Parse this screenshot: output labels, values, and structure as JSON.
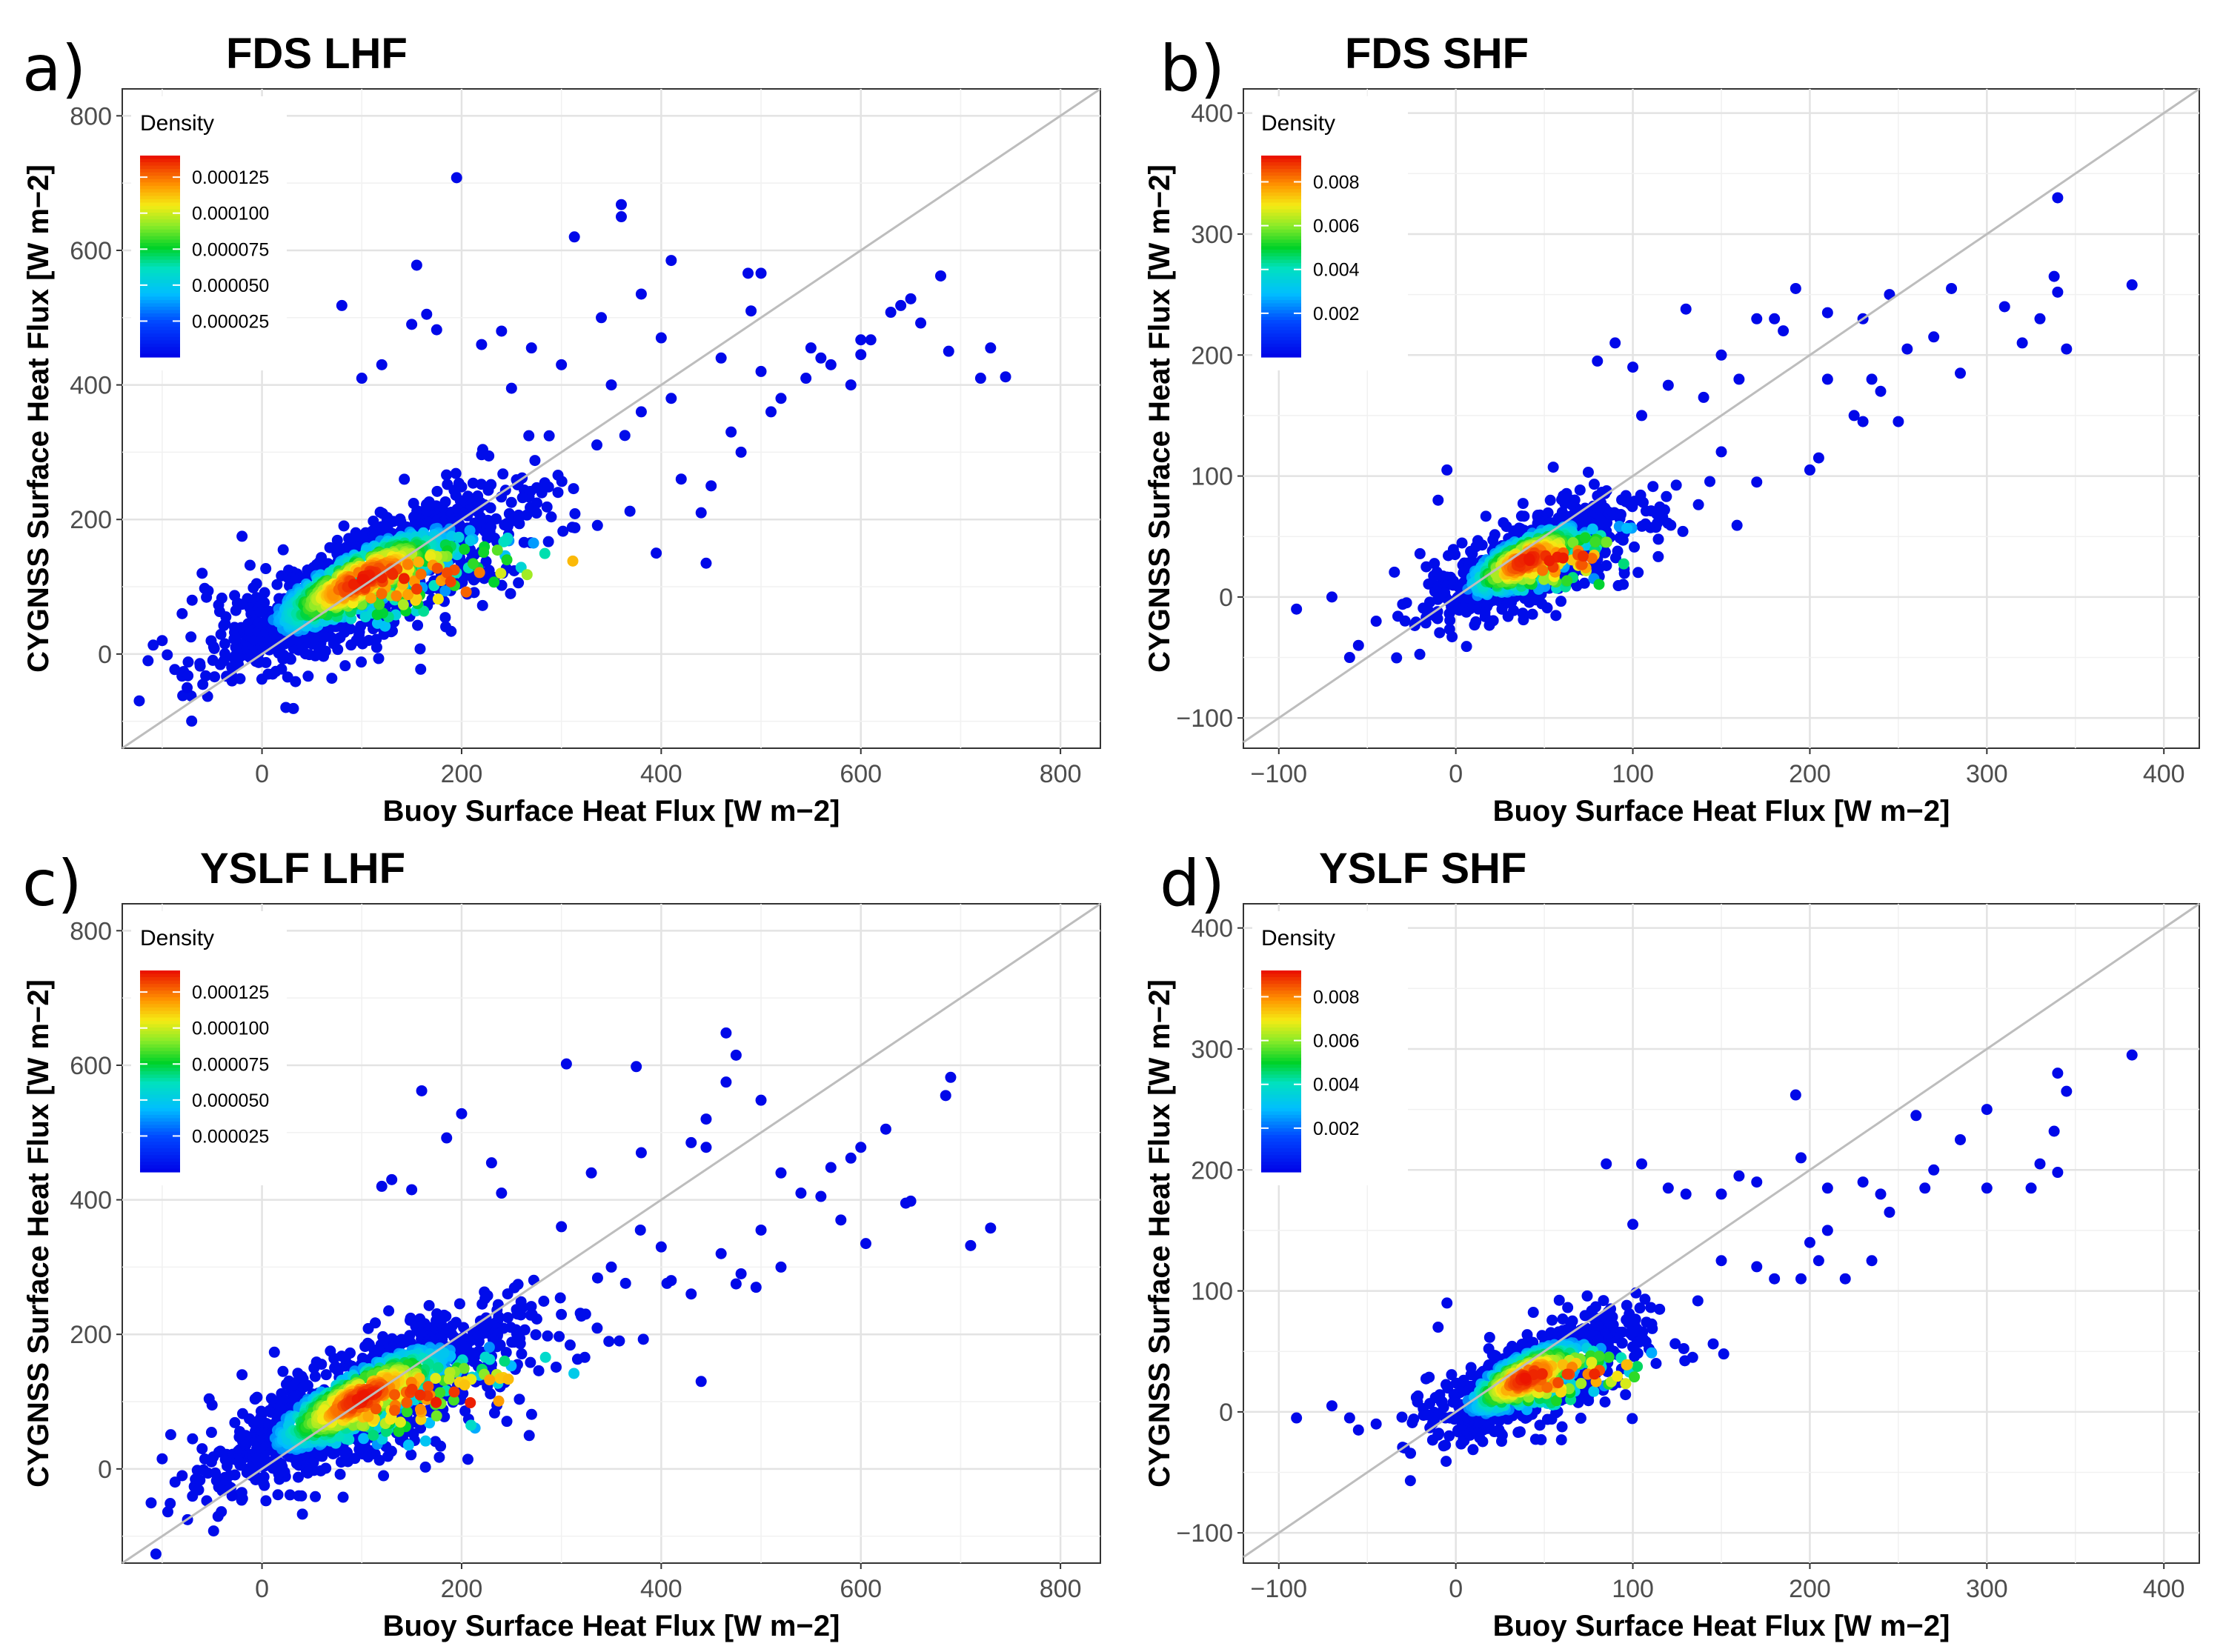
{
  "figure": {
    "panels": [
      {
        "letter": "a)",
        "title": "FDS LHF",
        "xlabel": "Buoy Surface Heat Flux [W m−2]",
        "ylabel": "CYGNSS Surface Heat Flux [W m−2]",
        "legend_title": "Density",
        "legend_labels": [
          "0.000125",
          "0.000100",
          "0.000075",
          "0.000050",
          "0.000025"
        ]
      },
      {
        "letter": "b)",
        "title": "FDS SHF",
        "xlabel": "Buoy Surface Heat Flux [W m−2]",
        "ylabel": "CYGNSS Surface Heat Flux [W m−2]",
        "legend_title": "Density",
        "legend_labels": [
          "0.008",
          "0.006",
          "0.004",
          "0.002"
        ]
      },
      {
        "letter": "c)",
        "title": "YSLF LHF",
        "xlabel": "Buoy Surface Heat Flux [W m−2]",
        "ylabel": "CYGNSS Surface Heat Flux [W m−2]",
        "legend_title": "Density",
        "legend_labels": [
          "0.000125",
          "0.000100",
          "0.000075",
          "0.000050",
          "0.000025"
        ]
      },
      {
        "letter": "d)",
        "title": "YSLF SHF",
        "xlabel": "Buoy Surface Heat Flux [W m−2]",
        "ylabel": "CYGNSS Surface Heat Flux [W m−2]",
        "legend_title": "Density",
        "legend_labels": [
          "0.008",
          "0.006",
          "0.004",
          "0.002"
        ]
      }
    ]
  },
  "chart_data": [
    {
      "type": "scatter",
      "title": "FDS LHF",
      "xlabel": "Buoy Surface Heat Flux [W m−2]",
      "ylabel": "CYGNSS Surface Heat Flux [W m−2]",
      "xlim": [
        -140,
        840
      ],
      "ylim": [
        -140,
        840
      ],
      "xticks": [
        0,
        200,
        400,
        600,
        800
      ],
      "yticks": [
        0,
        200,
        400,
        600,
        800
      ],
      "identity_line": true,
      "color_by": "density",
      "legend": {
        "title": "Density",
        "ticks": [
          0.000125,
          0.0001,
          7.5e-05,
          5e-05,
          2.5e-05
        ],
        "max": 0.00014
      },
      "cloud": {
        "center": [
          100,
          110
        ],
        "spread_along": 95,
        "spread_across": 30,
        "n": 1400
      },
      "outliers": [
        [
          195,
          708
        ],
        [
          360,
          668
        ],
        [
          360,
          650
        ],
        [
          313,
          620
        ],
        [
          155,
          578
        ],
        [
          410,
          585
        ],
        [
          487,
          566
        ],
        [
          500,
          566
        ],
        [
          680,
          562
        ],
        [
          650,
          528
        ],
        [
          380,
          535
        ],
        [
          80,
          518
        ],
        [
          630,
          508
        ],
        [
          640,
          518
        ],
        [
          165,
          505
        ],
        [
          660,
          492
        ],
        [
          150,
          490
        ],
        [
          175,
          482
        ],
        [
          600,
          467
        ],
        [
          610,
          467
        ],
        [
          688,
          450
        ],
        [
          730,
          455
        ],
        [
          720,
          410
        ],
        [
          745,
          412
        ],
        [
          550,
          455
        ],
        [
          560,
          440
        ],
        [
          570,
          430
        ],
        [
          590,
          400
        ],
        [
          600,
          445
        ],
        [
          545,
          410
        ],
        [
          350,
          400
        ],
        [
          460,
          440
        ],
        [
          500,
          420
        ],
        [
          520,
          380
        ],
        [
          510,
          360
        ],
        [
          470,
          330
        ],
        [
          480,
          300
        ],
        [
          420,
          260
        ],
        [
          450,
          250
        ],
        [
          440,
          210
        ],
        [
          395,
          150
        ],
        [
          445,
          135
        ],
        [
          250,
          395
        ],
        [
          300,
          430
        ],
        [
          270,
          455
        ],
        [
          120,
          430
        ],
        [
          100,
          410
        ],
        [
          490,
          510
        ],
        [
          400,
          470
        ],
        [
          340,
          500
        ],
        [
          -20,
          175
        ],
        [
          -60,
          120
        ],
        [
          -70,
          80
        ],
        [
          -100,
          20
        ],
        [
          -75,
          -50
        ],
        [
          -80,
          60
        ],
        [
          -30,
          -40
        ],
        [
          220,
          460
        ],
        [
          240,
          480
        ],
        [
          380,
          360
        ],
        [
          410,
          380
        ]
      ]
    },
    {
      "type": "scatter",
      "title": "FDS SHF",
      "xlabel": "Buoy Surface Heat Flux [W m−2]",
      "ylabel": "CYGNSS Surface Heat Flux [W m−2]",
      "xlim": [
        -120,
        420
      ],
      "ylim": [
        -125,
        420
      ],
      "xticks": [
        -100,
        0,
        100,
        200,
        300,
        400
      ],
      "yticks": [
        -100,
        0,
        100,
        200,
        300,
        400
      ],
      "identity_line": true,
      "color_by": "density",
      "legend": {
        "title": "Density",
        "ticks": [
          0.008,
          0.006,
          0.004,
          0.002
        ],
        "max": 0.0092
      },
      "cloud": {
        "center": [
          40,
          30
        ],
        "spread_along": 35,
        "spread_across": 14,
        "n": 900
      },
      "outliers": [
        [
          340,
          330
        ],
        [
          382,
          258
        ],
        [
          338,
          265
        ],
        [
          340,
          252
        ],
        [
          192,
          255
        ],
        [
          245,
          250
        ],
        [
          130,
          238
        ],
        [
          170,
          230
        ],
        [
          180,
          230
        ],
        [
          210,
          235
        ],
        [
          230,
          230
        ],
        [
          270,
          215
        ],
        [
          280,
          255
        ],
        [
          310,
          240
        ],
        [
          330,
          230
        ],
        [
          320,
          210
        ],
        [
          255,
          205
        ],
        [
          285,
          185
        ],
        [
          345,
          205
        ],
        [
          185,
          220
        ],
        [
          210,
          180
        ],
        [
          235,
          180
        ],
        [
          240,
          170
        ],
        [
          225,
          150
        ],
        [
          230,
          145
        ],
        [
          250,
          145
        ],
        [
          205,
          115
        ],
        [
          200,
          105
        ],
        [
          150,
          200
        ],
        [
          160,
          180
        ],
        [
          90,
          210
        ],
        [
          80,
          195
        ],
        [
          100,
          190
        ],
        [
          -90,
          -10
        ],
        [
          -70,
          0
        ],
        [
          -55,
          -40
        ],
        [
          -60,
          -50
        ],
        [
          -45,
          -20
        ],
        [
          -5,
          105
        ],
        [
          -10,
          80
        ],
        [
          120,
          175
        ],
        [
          140,
          165
        ],
        [
          105,
          150
        ],
        [
          150,
          120
        ],
        [
          170,
          95
        ]
      ]
    },
    {
      "type": "scatter",
      "title": "YSLF LHF",
      "xlabel": "Buoy Surface Heat Flux [W m−2]",
      "ylabel": "CYGNSS Surface Heat Flux [W m−2]",
      "xlim": [
        -140,
        840
      ],
      "ylim": [
        -140,
        840
      ],
      "xticks": [
        0,
        200,
        400,
        600,
        800
      ],
      "yticks": [
        0,
        200,
        400,
        600,
        800
      ],
      "identity_line": true,
      "color_by": "density",
      "legend": {
        "title": "Density",
        "ticks": [
          0.000125,
          0.0001,
          7.5e-05,
          5e-05,
          2.5e-05
        ],
        "max": 0.00014
      },
      "cloud": {
        "center": [
          100,
          105
        ],
        "spread_along": 95,
        "spread_across": 30,
        "n": 1400
      },
      "outliers": [
        [
          465,
          648
        ],
        [
          475,
          615
        ],
        [
          305,
          602
        ],
        [
          375,
          598
        ],
        [
          690,
          582
        ],
        [
          685,
          555
        ],
        [
          160,
          562
        ],
        [
          200,
          528
        ],
        [
          185,
          492
        ],
        [
          465,
          575
        ],
        [
          500,
          548
        ],
        [
          445,
          520
        ],
        [
          430,
          485
        ],
        [
          445,
          478
        ],
        [
          600,
          478
        ],
        [
          590,
          462
        ],
        [
          625,
          505
        ],
        [
          570,
          448
        ],
        [
          560,
          405
        ],
        [
          645,
          395
        ],
        [
          650,
          398
        ],
        [
          730,
          358
        ],
        [
          710,
          332
        ],
        [
          605,
          335
        ],
        [
          580,
          370
        ],
        [
          520,
          440
        ],
        [
          540,
          410
        ],
        [
          500,
          355
        ],
        [
          520,
          300
        ],
        [
          495,
          270
        ],
        [
          475,
          275
        ],
        [
          440,
          130
        ],
        [
          380,
          470
        ],
        [
          330,
          440
        ],
        [
          230,
          455
        ],
        [
          240,
          410
        ],
        [
          120,
          420
        ],
        [
          130,
          430
        ],
        [
          150,
          415
        ],
        [
          -20,
          140
        ],
        [
          -50,
          95
        ],
        [
          -60,
          30
        ],
        [
          -100,
          15
        ],
        [
          -80,
          -10
        ],
        [
          -30,
          -40
        ],
        [
          300,
          360
        ],
        [
          350,
          300
        ],
        [
          400,
          330
        ],
        [
          410,
          280
        ],
        [
          430,
          260
        ],
        [
          460,
          320
        ],
        [
          480,
          290
        ]
      ]
    },
    {
      "type": "scatter",
      "title": "YSLF SHF",
      "xlabel": "Buoy Surface Heat Flux [W m−2]",
      "ylabel": "CYGNSS Surface Heat Flux [W m−2]",
      "xlim": [
        -120,
        420
      ],
      "ylim": [
        -125,
        420
      ],
      "xticks": [
        -100,
        0,
        100,
        200,
        300,
        400
      ],
      "yticks": [
        -100,
        0,
        100,
        200,
        300,
        400
      ],
      "identity_line": true,
      "color_by": "density",
      "legend": {
        "title": "Density",
        "ticks": [
          0.008,
          0.006,
          0.004,
          0.002
        ],
        "max": 0.0092
      },
      "cloud": {
        "center": [
          40,
          28
        ],
        "spread_along": 35,
        "spread_across": 14,
        "n": 900
      },
      "outliers": [
        [
          382,
          295
        ],
        [
          340,
          280
        ],
        [
          345,
          265
        ],
        [
          300,
          250
        ],
        [
          260,
          245
        ],
        [
          192,
          262
        ],
        [
          285,
          225
        ],
        [
          338,
          232
        ],
        [
          340,
          198
        ],
        [
          325,
          185
        ],
        [
          330,
          205
        ],
        [
          265,
          185
        ],
        [
          300,
          185
        ],
        [
          270,
          200
        ],
        [
          195,
          210
        ],
        [
          160,
          195
        ],
        [
          170,
          190
        ],
        [
          230,
          190
        ],
        [
          240,
          180
        ],
        [
          210,
          185
        ],
        [
          245,
          165
        ],
        [
          235,
          125
        ],
        [
          210,
          150
        ],
        [
          200,
          140
        ],
        [
          205,
          125
        ],
        [
          220,
          110
        ],
        [
          195,
          110
        ],
        [
          180,
          110
        ],
        [
          150,
          180
        ],
        [
          130,
          180
        ],
        [
          85,
          205
        ],
        [
          105,
          205
        ],
        [
          120,
          185
        ],
        [
          -90,
          -5
        ],
        [
          -70,
          5
        ],
        [
          -55,
          -15
        ],
        [
          -45,
          -10
        ],
        [
          -60,
          -5
        ],
        [
          -5,
          90
        ],
        [
          -10,
          70
        ],
        [
          100,
          155
        ],
        [
          150,
          125
        ],
        [
          170,
          120
        ]
      ]
    }
  ]
}
